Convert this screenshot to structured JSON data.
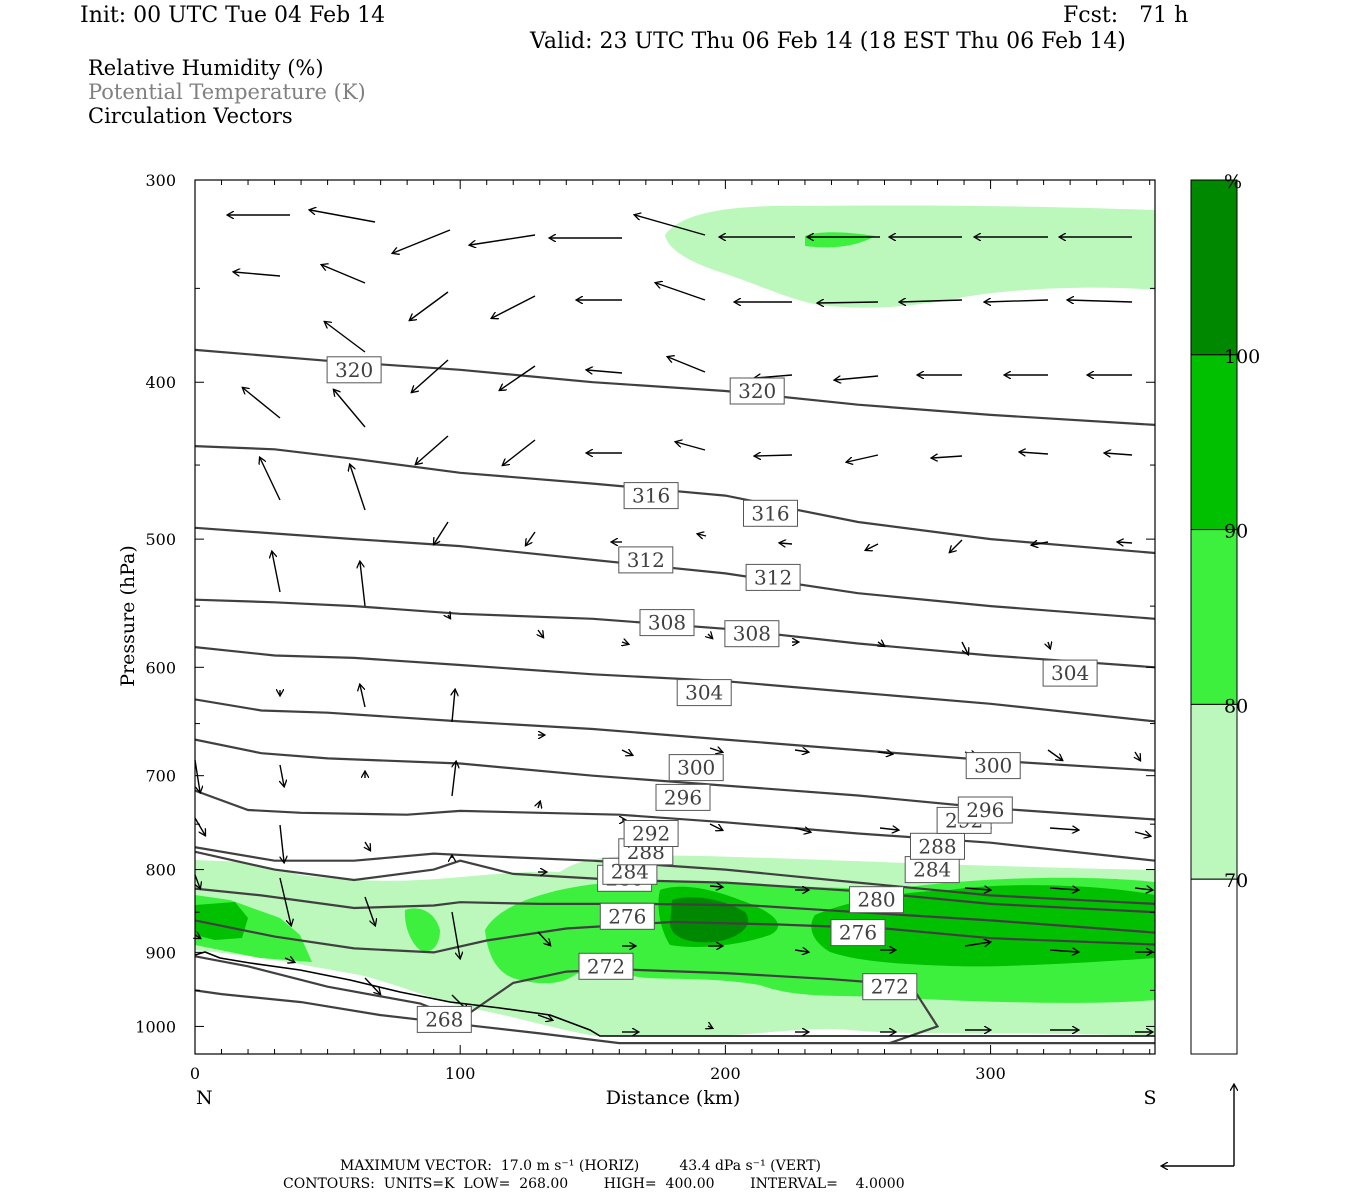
{
  "header": {
    "init": "Init: 00 UTC Tue 04 Feb 14",
    "fcst": "Fcst:   71 h",
    "valid": "Valid: 23 UTC Thu 06 Feb 14 (18 EST Thu 06 Feb 14)"
  },
  "legend": {
    "line1": "Relative Humidity (%)",
    "line2": "Potential Temperature (K)",
    "line3": "Circulation Vectors"
  },
  "footer": {
    "line1": "MAXIMUM VECTOR:  17.0 m s⁻¹ (HORIZ)         43.4 dPa s⁻¹ (VERT)",
    "line2": "CONTOURS:  UNITS=K  LOW=  268.00        HIGH=  400.00        INTERVAL=    4.0000"
  },
  "colors": {
    "rh70": "#bcf7bc",
    "rh80": "#3ef03e",
    "rh90": "#00c000",
    "rh100": "#008800",
    "theta_line": "#404040",
    "terrain": "#000000"
  },
  "chart_data": {
    "type": "cross-section",
    "xlabel": "Distance (km)",
    "ylabel": "Pressure (hPa)",
    "xlim": [
      0,
      362
    ],
    "ylim": [
      1040,
      300
    ],
    "y_scale": "log",
    "x_ticks": [
      "0",
      "100",
      "200",
      "300"
    ],
    "y_ticks": [
      "300",
      "400",
      "500",
      "600",
      "700",
      "800",
      "900",
      "1000"
    ],
    "endpoints": {
      "left": "N",
      "right": "S"
    },
    "colorbar": {
      "unit": "%",
      "levels": [
        "70",
        "80",
        "90",
        "100"
      ],
      "colors": [
        "#ffffff",
        "#bcf7bc",
        "#3ef03e",
        "#00c000",
        "#008800"
      ]
    },
    "theta_contours": [
      {
        "label": "268",
        "points": [
          [
            0,
            950
          ],
          [
            10,
            955
          ],
          [
            40,
            966
          ],
          [
            70,
            984
          ],
          [
            100,
            997
          ],
          [
            130,
            1010
          ],
          [
            160,
            1024
          ],
          [
            200,
            1024
          ],
          [
            260,
            1024
          ],
          [
            362,
            1024
          ]
        ],
        "labels_at": [
          [
            94,
            990
          ]
        ]
      },
      {
        "label": "272",
        "points": [
          [
            0,
            905
          ],
          [
            20,
            918
          ],
          [
            50,
            945
          ],
          [
            85,
            968
          ],
          [
            100,
            990
          ],
          [
            120,
            940
          ],
          [
            140,
            925
          ],
          [
            160,
            922
          ],
          [
            200,
            927
          ],
          [
            240,
            935
          ],
          [
            270,
            943
          ],
          [
            280,
            1000
          ],
          [
            262,
            1024
          ]
        ],
        "labels_at": [
          [
            155,
            918
          ],
          [
            262,
            945
          ]
        ]
      },
      {
        "label": "276",
        "points": [
          [
            0,
            860
          ],
          [
            30,
            880
          ],
          [
            60,
            895
          ],
          [
            90,
            900
          ],
          [
            110,
            885
          ],
          [
            140,
            870
          ],
          [
            180,
            862
          ],
          [
            220,
            865
          ],
          [
            260,
            870
          ],
          [
            300,
            882
          ],
          [
            362,
            890
          ]
        ],
        "labels_at": [
          [
            163,
            855
          ],
          [
            250,
            875
          ]
        ]
      },
      {
        "label": "280",
        "points": [
          [
            0,
            822
          ],
          [
            25,
            830
          ],
          [
            60,
            845
          ],
          [
            90,
            842
          ],
          [
            100,
            838
          ],
          [
            130,
            840
          ],
          [
            170,
            840
          ],
          [
            210,
            842
          ],
          [
            250,
            850
          ],
          [
            300,
            860
          ],
          [
            362,
            875
          ]
        ],
        "labels_at": [
          [
            162,
            810
          ],
          [
            257,
            835
          ]
        ]
      },
      {
        "label": "284",
        "points": [
          [
            0,
            780
          ],
          [
            30,
            800
          ],
          [
            60,
            812
          ],
          [
            90,
            800
          ],
          [
            100,
            790
          ],
          [
            120,
            805
          ],
          [
            160,
            812
          ],
          [
            200,
            815
          ],
          [
            250,
            825
          ],
          [
            300,
            840
          ],
          [
            362,
            850
          ]
        ],
        "labels_at": [
          [
            164,
            802
          ],
          [
            278,
            800
          ]
        ]
      },
      {
        "label": "288",
        "points": [
          [
            0,
            775
          ],
          [
            30,
            790
          ],
          [
            60,
            790
          ],
          [
            90,
            782
          ],
          [
            110,
            785
          ],
          [
            150,
            790
          ],
          [
            200,
            800
          ],
          [
            250,
            815
          ],
          [
            300,
            830
          ],
          [
            362,
            840
          ]
        ],
        "labels_at": [
          [
            170,
            780
          ],
          [
            280,
            774
          ]
        ]
      },
      {
        "label": "292",
        "points": [
          [
            0,
            715
          ],
          [
            20,
            735
          ],
          [
            40,
            738
          ],
          [
            80,
            740
          ],
          [
            100,
            736
          ],
          [
            130,
            738
          ],
          [
            160,
            740
          ],
          [
            200,
            748
          ],
          [
            250,
            760
          ],
          [
            300,
            770
          ],
          [
            362,
            790
          ]
        ],
        "labels_at": [
          [
            172,
            760
          ],
          [
            290,
            746
          ]
        ]
      },
      {
        "label": "296",
        "points": [
          [
            0,
            665
          ],
          [
            25,
            678
          ],
          [
            50,
            683
          ],
          [
            100,
            688
          ],
          [
            150,
            700
          ],
          [
            200,
            710
          ],
          [
            250,
            720
          ],
          [
            300,
            733
          ],
          [
            362,
            745
          ]
        ],
        "labels_at": [
          [
            184,
            722
          ],
          [
            298,
            735
          ]
        ]
      },
      {
        "label": "300",
        "points": [
          [
            0,
            628
          ],
          [
            25,
            638
          ],
          [
            50,
            640
          ],
          [
            100,
            648
          ],
          [
            150,
            655
          ],
          [
            200,
            665
          ],
          [
            250,
            675
          ],
          [
            300,
            685
          ],
          [
            362,
            695
          ]
        ],
        "labels_at": [
          [
            189,
            692
          ],
          [
            301,
            690
          ]
        ]
      },
      {
        "label": "304",
        "points": [
          [
            0,
            583
          ],
          [
            30,
            590
          ],
          [
            60,
            592
          ],
          [
            100,
            598
          ],
          [
            150,
            606
          ],
          [
            200,
            612
          ],
          [
            250,
            622
          ],
          [
            300,
            632
          ],
          [
            362,
            648
          ]
        ],
        "labels_at": [
          [
            192,
            622
          ],
          [
            330,
            605
          ]
        ]
      },
      {
        "label": "308",
        "points": [
          [
            0,
            545
          ],
          [
            30,
            547
          ],
          [
            60,
            550
          ],
          [
            100,
            556
          ],
          [
            150,
            560
          ],
          [
            200,
            568
          ],
          [
            250,
            580
          ],
          [
            300,
            590
          ],
          [
            362,
            600
          ]
        ],
        "labels_at": [
          [
            178,
            563
          ],
          [
            210,
            572
          ]
        ]
      },
      {
        "label": "312",
        "points": [
          [
            0,
            492
          ],
          [
            30,
            496
          ],
          [
            60,
            500
          ],
          [
            100,
            505
          ],
          [
            150,
            515
          ],
          [
            200,
            525
          ],
          [
            250,
            540
          ],
          [
            300,
            550
          ],
          [
            362,
            560
          ]
        ],
        "labels_at": [
          [
            170,
            515
          ],
          [
            218,
            528
          ]
        ]
      },
      {
        "label": "316",
        "points": [
          [
            0,
            438
          ],
          [
            30,
            440
          ],
          [
            60,
            446
          ],
          [
            100,
            455
          ],
          [
            150,
            462
          ],
          [
            200,
            470
          ],
          [
            250,
            488
          ],
          [
            300,
            500
          ],
          [
            362,
            510
          ]
        ],
        "labels_at": [
          [
            172,
            470
          ],
          [
            217,
            482
          ]
        ]
      },
      {
        "label": "320",
        "points": [
          [
            0,
            382
          ],
          [
            50,
            388
          ],
          [
            100,
            393
          ],
          [
            150,
            400
          ],
          [
            200,
            405
          ],
          [
            250,
            413
          ],
          [
            300,
            419
          ],
          [
            362,
            425
          ]
        ],
        "labels_at": [
          [
            60,
            393
          ],
          [
            212,
            405
          ]
        ]
      }
    ]
  }
}
